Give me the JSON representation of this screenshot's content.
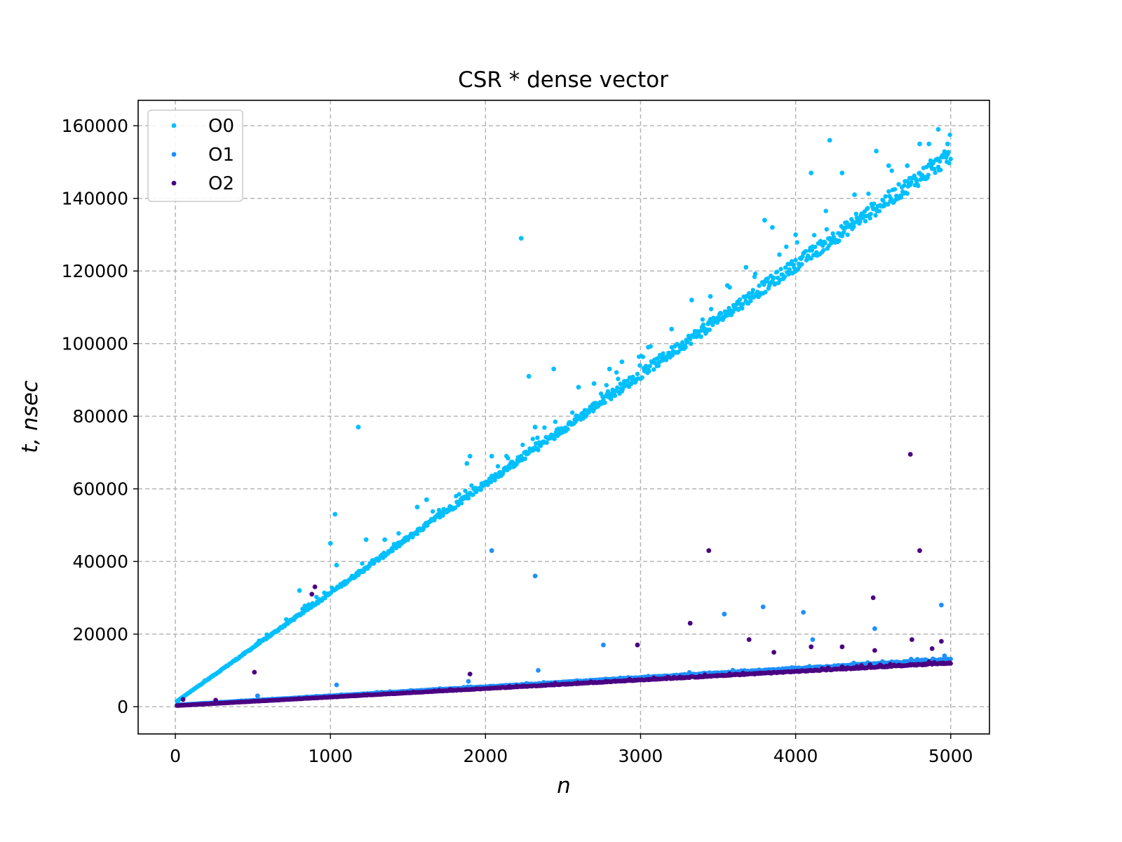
{
  "chart_data": {
    "type": "scatter",
    "title": "CSR * dense vector",
    "xlabel": "n",
    "ylabel": "t, nsec",
    "xlim": [
      -240,
      5250
    ],
    "ylim": [
      -7500,
      167000
    ],
    "xticks": [
      0,
      1000,
      2000,
      3000,
      4000,
      5000
    ],
    "yticks": [
      0,
      20000,
      40000,
      60000,
      80000,
      100000,
      120000,
      140000,
      160000
    ],
    "xtick_labels": [
      "0",
      "1000",
      "2000",
      "3000",
      "4000",
      "5000"
    ],
    "ytick_labels": [
      "0",
      "20000",
      "40000",
      "60000",
      "80000",
      "100000",
      "120000",
      "140000",
      "160000"
    ],
    "grid": true,
    "legend_position": "upper-left",
    "colors": {
      "O0": "#00bfff",
      "O1": "#1e90ff",
      "O2": "#4b0082"
    },
    "series": [
      {
        "name": "O0",
        "trend": {
          "x": [
            10,
            5000
          ],
          "y": [
            1500,
            151000
          ]
        },
        "outliers": {
          "x": [
            800,
            1000,
            1030,
            1040,
            1180,
            1230,
            1350,
            1560,
            1620,
            1880,
            1900,
            2040,
            2230,
            2280,
            2320,
            2440,
            2600,
            2700,
            2800,
            2880,
            3050,
            3200,
            3330,
            3450,
            3560,
            3680,
            3800,
            3850,
            4000,
            4100,
            4220,
            4300,
            4380,
            4520,
            4600,
            4720,
            4800,
            4860,
            4920,
            4980
          ],
          "y": [
            32000,
            45000,
            53000,
            39000,
            77000,
            46000,
            46000,
            55000,
            57000,
            67000,
            69000,
            69000,
            129000,
            91000,
            77000,
            93000,
            88000,
            89000,
            93000,
            95000,
            99000,
            104000,
            112000,
            113000,
            116000,
            121000,
            134000,
            132000,
            130000,
            147000,
            156000,
            147000,
            141000,
            153000,
            149000,
            149000,
            155000,
            155000,
            159000,
            155000
          ]
        }
      },
      {
        "name": "O1",
        "trend": {
          "x": [
            10,
            5000
          ],
          "y": [
            500,
            13000
          ]
        },
        "outliers": {
          "x": [
            530,
            1040,
            1890,
            2040,
            2320,
            2340,
            2760,
            3540,
            3790,
            4050,
            4110,
            4510,
            4940,
            4960
          ],
          "y": [
            3000,
            6000,
            7000,
            43000,
            36000,
            10000,
            17000,
            25500,
            27500,
            26000,
            18500,
            21500,
            28000,
            14000
          ]
        }
      },
      {
        "name": "O2",
        "trend": {
          "x": [
            10,
            5000
          ],
          "y": [
            300,
            12000
          ]
        },
        "outliers": {
          "x": [
            50,
            260,
            510,
            880,
            900,
            1900,
            2980,
            3320,
            3440,
            3700,
            3860,
            4100,
            4300,
            4500,
            4510,
            4740,
            4750,
            4800,
            4880,
            4940
          ],
          "y": [
            2000,
            1800,
            9500,
            31000,
            33000,
            9000,
            17000,
            23000,
            43000,
            18500,
            15000,
            16500,
            16500,
            30000,
            15500,
            69500,
            18500,
            43000,
            16000,
            18000
          ]
        }
      }
    ]
  }
}
